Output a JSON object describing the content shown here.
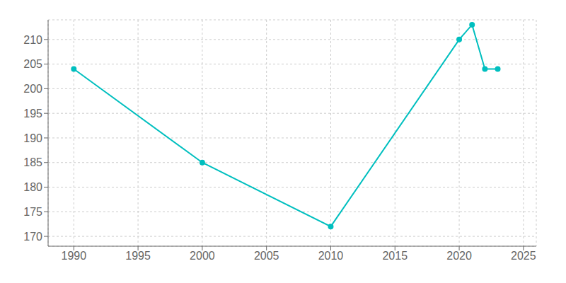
{
  "chart_data": {
    "type": "line",
    "x": [
      1990,
      2000,
      2010,
      2020,
      2021,
      2022,
      2023
    ],
    "values": [
      204,
      185,
      172,
      210,
      213,
      204,
      204
    ],
    "color": "#00BFBF",
    "marker": "circle",
    "xlim": [
      1988,
      2026
    ],
    "ylim": [
      168,
      214
    ],
    "xticks": [
      1990,
      1995,
      2000,
      2005,
      2010,
      2015,
      2020,
      2025
    ],
    "yticks": [
      170,
      175,
      180,
      185,
      190,
      195,
      200,
      205,
      210
    ],
    "grid": true
  }
}
